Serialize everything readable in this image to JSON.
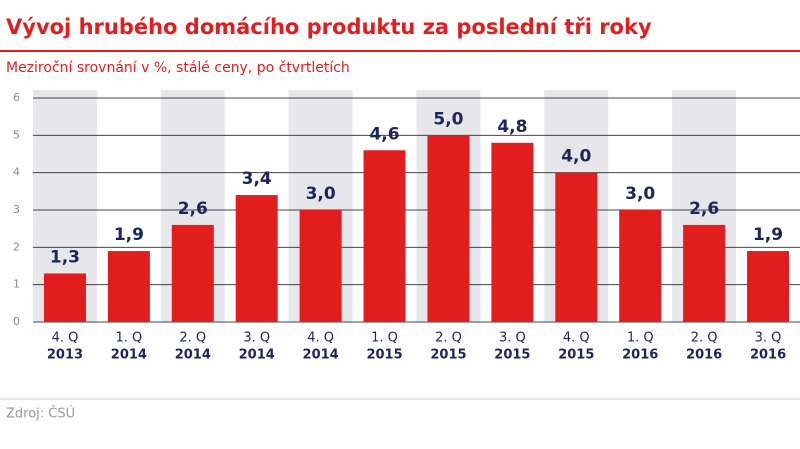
{
  "chart_data": {
    "type": "bar",
    "title": "Vývoj hrubého domácího produktu za poslední tři roky",
    "subtitle": "Meziroční srovnání v %, stálé ceny, po čtvrtletích",
    "source": "Zdroj: ČSÚ",
    "categories": [
      [
        "4. Q",
        "2013"
      ],
      [
        "1. Q",
        "2014"
      ],
      [
        "2. Q",
        "2014"
      ],
      [
        "3. Q",
        "2014"
      ],
      [
        "4. Q",
        "2014"
      ],
      [
        "1. Q",
        "2015"
      ],
      [
        "2. Q",
        "2015"
      ],
      [
        "3. Q",
        "2015"
      ],
      [
        "4. Q",
        "2015"
      ],
      [
        "1. Q",
        "2016"
      ],
      [
        "2. Q",
        "2016"
      ],
      [
        "3. Q",
        "2016"
      ]
    ],
    "values": [
      1.3,
      1.9,
      2.6,
      3.4,
      3.0,
      4.6,
      5.0,
      4.8,
      4.0,
      3.0,
      2.6,
      1.9
    ],
    "value_labels": [
      "1,3",
      "1,9",
      "2,6",
      "3,4",
      "3,0",
      "4,6",
      "5,0",
      "4,8",
      "4,0",
      "3,0",
      "2,6",
      "1,9"
    ],
    "color": "#e11d1d",
    "ylim": [
      0,
      6
    ],
    "yticks": [
      0,
      1,
      2,
      3,
      4,
      5,
      6
    ],
    "grid": true
  }
}
